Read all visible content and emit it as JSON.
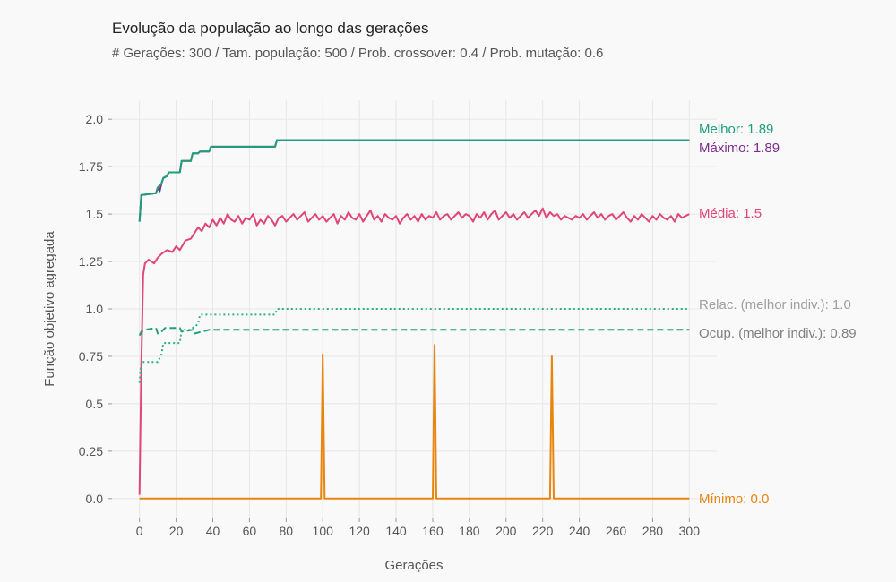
{
  "chart_data": {
    "type": "line",
    "title": "Evolução da população ao longo das gerações",
    "subtitle": "# Gerações: 300 / Tam. população: 500 / Prob. crossover: 0.4 / Prob. mutação: 0.6",
    "xlabel": "Gerações",
    "ylabel": "Função objetivo agregada",
    "xlim": [
      -15,
      315
    ],
    "ylim": [
      -0.1,
      2.1
    ],
    "x_ticks": [
      0,
      20,
      40,
      60,
      80,
      100,
      120,
      140,
      160,
      180,
      200,
      220,
      240,
      260,
      280,
      300
    ],
    "y_ticks": [
      0.0,
      0.25,
      0.5,
      0.75,
      1.0,
      1.25,
      1.5,
      1.75,
      2.0
    ],
    "y_tick_labels": [
      "0.0",
      "0.25",
      "0.5",
      "0.75",
      "1.0",
      "1.25",
      "1.5",
      "1.75",
      "2.0"
    ],
    "grid": true,
    "legend": "direct-labels-right",
    "series": [
      {
        "name": "Máximo",
        "label": "Máximo: 1.89",
        "color": "#7b2d8e",
        "style": "solid",
        "points": [
          [
            0,
            1.46
          ],
          [
            1,
            1.6
          ],
          [
            9,
            1.61
          ],
          [
            10,
            1.64
          ],
          [
            11,
            1.62
          ],
          [
            12,
            1.66
          ],
          [
            13,
            1.69
          ],
          [
            15,
            1.7
          ],
          [
            16,
            1.72
          ],
          [
            22,
            1.72
          ],
          [
            23,
            1.78
          ],
          [
            28,
            1.78
          ],
          [
            29,
            1.82
          ],
          [
            32,
            1.82
          ],
          [
            33,
            1.83
          ],
          [
            38,
            1.83
          ],
          [
            39,
            1.855
          ],
          [
            74,
            1.855
          ],
          [
            75,
            1.89
          ],
          [
            300,
            1.89
          ]
        ]
      },
      {
        "name": "Melhor",
        "label": "Melhor: 1.89",
        "color": "#1f9e7a",
        "style": "solid",
        "points": [
          [
            0,
            1.46
          ],
          [
            1,
            1.6
          ],
          [
            9,
            1.61
          ],
          [
            10,
            1.64
          ],
          [
            12,
            1.66
          ],
          [
            13,
            1.69
          ],
          [
            15,
            1.7
          ],
          [
            16,
            1.72
          ],
          [
            22,
            1.72
          ],
          [
            23,
            1.78
          ],
          [
            28,
            1.78
          ],
          [
            29,
            1.82
          ],
          [
            32,
            1.82
          ],
          [
            33,
            1.83
          ],
          [
            38,
            1.83
          ],
          [
            39,
            1.855
          ],
          [
            74,
            1.855
          ],
          [
            75,
            1.89
          ],
          [
            300,
            1.89
          ]
        ]
      },
      {
        "name": "Média",
        "label": "Média: 1.5",
        "color": "#e0457b",
        "style": "solid",
        "points": [
          [
            0,
            0.02
          ],
          [
            1,
            0.7
          ],
          [
            2,
            1.18
          ],
          [
            3,
            1.24
          ],
          [
            5,
            1.26
          ],
          [
            8,
            1.24
          ],
          [
            10,
            1.27
          ],
          [
            12,
            1.29
          ],
          [
            15,
            1.31
          ],
          [
            18,
            1.3
          ],
          [
            20,
            1.33
          ],
          [
            22,
            1.31
          ],
          [
            25,
            1.36
          ],
          [
            28,
            1.37
          ],
          [
            30,
            1.4
          ],
          [
            32,
            1.43
          ],
          [
            34,
            1.41
          ],
          [
            36,
            1.45
          ],
          [
            38,
            1.43
          ],
          [
            40,
            1.47
          ],
          [
            42,
            1.44
          ],
          [
            44,
            1.48
          ],
          [
            46,
            1.45
          ],
          [
            48,
            1.5
          ],
          [
            50,
            1.47
          ],
          [
            52,
            1.46
          ],
          [
            54,
            1.49
          ],
          [
            56,
            1.45
          ],
          [
            58,
            1.48
          ],
          [
            60,
            1.47
          ],
          [
            62,
            1.5
          ],
          [
            64,
            1.44
          ],
          [
            66,
            1.47
          ],
          [
            68,
            1.45
          ],
          [
            70,
            1.49
          ],
          [
            72,
            1.47
          ],
          [
            74,
            1.44
          ],
          [
            76,
            1.48
          ],
          [
            78,
            1.49
          ],
          [
            80,
            1.46
          ],
          [
            82,
            1.48
          ],
          [
            84,
            1.5
          ],
          [
            86,
            1.47
          ],
          [
            88,
            1.49
          ],
          [
            90,
            1.51
          ],
          [
            92,
            1.46
          ],
          [
            94,
            1.48
          ],
          [
            96,
            1.5
          ],
          [
            98,
            1.47
          ],
          [
            100,
            1.49
          ],
          [
            102,
            1.46
          ],
          [
            104,
            1.48
          ],
          [
            106,
            1.5
          ],
          [
            108,
            1.45
          ],
          [
            110,
            1.49
          ],
          [
            112,
            1.47
          ],
          [
            114,
            1.51
          ],
          [
            116,
            1.48
          ],
          [
            118,
            1.47
          ],
          [
            120,
            1.5
          ],
          [
            122,
            1.46
          ],
          [
            124,
            1.49
          ],
          [
            126,
            1.52
          ],
          [
            128,
            1.47
          ],
          [
            130,
            1.49
          ],
          [
            132,
            1.46
          ],
          [
            134,
            1.5
          ],
          [
            136,
            1.48
          ],
          [
            138,
            1.47
          ],
          [
            140,
            1.49
          ],
          [
            142,
            1.45
          ],
          [
            144,
            1.48
          ],
          [
            146,
            1.5
          ],
          [
            148,
            1.47
          ],
          [
            150,
            1.49
          ],
          [
            152,
            1.46
          ],
          [
            154,
            1.5
          ],
          [
            156,
            1.47
          ],
          [
            158,
            1.49
          ],
          [
            160,
            1.48
          ],
          [
            162,
            1.51
          ],
          [
            164,
            1.47
          ],
          [
            166,
            1.49
          ],
          [
            168,
            1.5
          ],
          [
            170,
            1.47
          ],
          [
            172,
            1.49
          ],
          [
            174,
            1.51
          ],
          [
            176,
            1.48
          ],
          [
            178,
            1.5
          ],
          [
            180,
            1.49
          ],
          [
            182,
            1.46
          ],
          [
            184,
            1.5
          ],
          [
            186,
            1.48
          ],
          [
            188,
            1.51
          ],
          [
            190,
            1.47
          ],
          [
            192,
            1.5
          ],
          [
            194,
            1.52
          ],
          [
            196,
            1.47
          ],
          [
            198,
            1.49
          ],
          [
            200,
            1.51
          ],
          [
            202,
            1.48
          ],
          [
            204,
            1.5
          ],
          [
            206,
            1.47
          ],
          [
            208,
            1.49
          ],
          [
            210,
            1.51
          ],
          [
            212,
            1.48
          ],
          [
            214,
            1.5
          ],
          [
            216,
            1.52
          ],
          [
            218,
            1.49
          ],
          [
            220,
            1.53
          ],
          [
            222,
            1.48
          ],
          [
            224,
            1.51
          ],
          [
            226,
            1.49
          ],
          [
            228,
            1.5
          ],
          [
            230,
            1.47
          ],
          [
            232,
            1.49
          ],
          [
            234,
            1.48
          ],
          [
            236,
            1.47
          ],
          [
            238,
            1.49
          ],
          [
            240,
            1.48
          ],
          [
            242,
            1.5
          ],
          [
            244,
            1.47
          ],
          [
            246,
            1.49
          ],
          [
            248,
            1.51
          ],
          [
            250,
            1.48
          ],
          [
            252,
            1.5
          ],
          [
            254,
            1.47
          ],
          [
            256,
            1.49
          ],
          [
            258,
            1.5
          ],
          [
            260,
            1.47
          ],
          [
            262,
            1.49
          ],
          [
            264,
            1.51
          ],
          [
            266,
            1.48
          ],
          [
            268,
            1.46
          ],
          [
            270,
            1.49
          ],
          [
            272,
            1.47
          ],
          [
            274,
            1.5
          ],
          [
            276,
            1.48
          ],
          [
            278,
            1.46
          ],
          [
            280,
            1.49
          ],
          [
            282,
            1.47
          ],
          [
            284,
            1.5
          ],
          [
            286,
            1.48
          ],
          [
            288,
            1.47
          ],
          [
            290,
            1.49
          ],
          [
            292,
            1.46
          ],
          [
            294,
            1.5
          ],
          [
            296,
            1.48
          ],
          [
            298,
            1.49
          ],
          [
            300,
            1.5
          ]
        ]
      },
      {
        "name": "Relac. (melhor indiv.)",
        "label": "Relac. (melhor indiv.): 1.0",
        "color": "#2bb08a",
        "style": "dotted",
        "points": [
          [
            0,
            0.61
          ],
          [
            1,
            0.72
          ],
          [
            10,
            0.72
          ],
          [
            12,
            0.76
          ],
          [
            13,
            0.82
          ],
          [
            22,
            0.82
          ],
          [
            23,
            0.89
          ],
          [
            28,
            0.89
          ],
          [
            29,
            0.9
          ],
          [
            32,
            0.92
          ],
          [
            33,
            0.97
          ],
          [
            74,
            0.97
          ],
          [
            75,
            1.0
          ],
          [
            300,
            1.0
          ]
        ]
      },
      {
        "name": "Ocup. (melhor indiv.)",
        "label": "Ocup. (melhor indiv.): 0.89",
        "color": "#1f9e7a",
        "style": "dashed",
        "points": [
          [
            0,
            0.86
          ],
          [
            1,
            0.88
          ],
          [
            3,
            0.89
          ],
          [
            9,
            0.9
          ],
          [
            10,
            0.87
          ],
          [
            12,
            0.88
          ],
          [
            14,
            0.9
          ],
          [
            22,
            0.9
          ],
          [
            23,
            0.88
          ],
          [
            29,
            0.89
          ],
          [
            30,
            0.87
          ],
          [
            34,
            0.88
          ],
          [
            38,
            0.89
          ],
          [
            300,
            0.89
          ]
        ]
      },
      {
        "name": "Mínimo",
        "label": "Mínimo: 0.0",
        "color": "#e8850f",
        "style": "solid",
        "points": [
          [
            0,
            0.0
          ],
          [
            99,
            0.0
          ],
          [
            100,
            0.76
          ],
          [
            101,
            0.0
          ],
          [
            160,
            0.0
          ],
          [
            161,
            0.81
          ],
          [
            162,
            0.0
          ],
          [
            224,
            0.0
          ],
          [
            225,
            0.75
          ],
          [
            226,
            0.0
          ],
          [
            300,
            0.0
          ]
        ]
      }
    ]
  },
  "end_labels": [
    {
      "text": "Melhor: 1.89",
      "color": "#1f9e7a"
    },
    {
      "text": "Máximo: 1.89",
      "color": "#7b2d8e"
    },
    {
      "text": "Média: 1.5",
      "color": "#e0457b"
    },
    {
      "text": "Relac. (melhor indiv.): 1.0",
      "color": "#a0a0a0"
    },
    {
      "text": "Ocup. (melhor indiv.): 0.89",
      "color": "#808080"
    },
    {
      "text": "Mínimo: 0.0",
      "color": "#e8850f"
    }
  ]
}
